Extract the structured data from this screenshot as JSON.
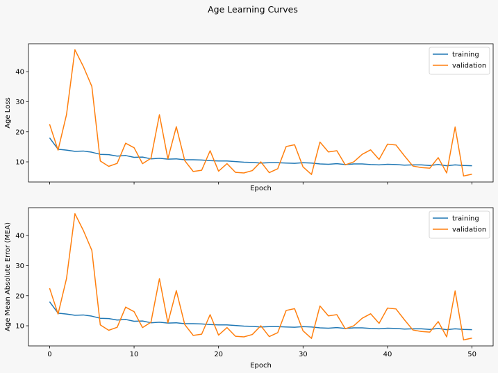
{
  "figure": {
    "title": "Age Learning Curves",
    "background": "#f7f7f7"
  },
  "colors": {
    "training": "#1f77b4",
    "validation": "#ff7f0e"
  },
  "chart_data": [
    {
      "type": "line",
      "title": "",
      "xlabel": "Epoch",
      "ylabel": "Age Loss",
      "xlim": [
        -2.5,
        52.5
      ],
      "ylim": [
        3.3,
        49.3
      ],
      "xticks": [
        0,
        10,
        20,
        30,
        40,
        50
      ],
      "yticks": [
        10,
        20,
        30,
        40
      ],
      "xticklabels_visible": false,
      "grid": false,
      "legend": {
        "location": "top-right",
        "entries": [
          "training",
          "validation"
        ]
      },
      "x": [
        0,
        1,
        2,
        3,
        4,
        5,
        6,
        7,
        8,
        9,
        10,
        11,
        12,
        13,
        14,
        15,
        16,
        17,
        18,
        19,
        20,
        21,
        22,
        23,
        24,
        25,
        26,
        27,
        28,
        29,
        30,
        31,
        32,
        33,
        34,
        35,
        36,
        37,
        38,
        39,
        40,
        41,
        42,
        43,
        44,
        45,
        46,
        47,
        48,
        49,
        50
      ],
      "series": [
        {
          "name": "training",
          "values": [
            18.0,
            14.2,
            13.9,
            13.5,
            13.6,
            13.2,
            12.5,
            12.4,
            11.9,
            12.1,
            11.5,
            11.6,
            11.0,
            11.2,
            10.9,
            11.0,
            10.7,
            10.7,
            10.6,
            10.4,
            10.3,
            10.3,
            10.1,
            9.9,
            9.8,
            9.6,
            9.7,
            9.7,
            9.6,
            9.5,
            9.7,
            9.6,
            9.3,
            9.2,
            9.4,
            9.1,
            9.3,
            9.3,
            9.1,
            9.0,
            9.2,
            9.1,
            8.9,
            9.0,
            9.0,
            8.8,
            9.1,
            8.7,
            9.0,
            8.8,
            8.7
          ]
        },
        {
          "name": "validation",
          "values": [
            22.5,
            13.9,
            25.7,
            47.3,
            41.7,
            35.1,
            10.3,
            8.5,
            9.5,
            16.2,
            14.7,
            9.4,
            11.2,
            25.7,
            11.0,
            21.7,
            10.4,
            6.8,
            7.2,
            13.7,
            6.9,
            9.4,
            6.5,
            6.3,
            7.1,
            10.0,
            6.4,
            7.7,
            15.1,
            15.7,
            8.3,
            5.8,
            16.6,
            13.3,
            13.7,
            9.0,
            10.0,
            12.5,
            14.0,
            10.8,
            15.9,
            15.6,
            12.0,
            8.6,
            8.1,
            7.9,
            11.4,
            6.3,
            21.6,
            5.3,
            5.9
          ]
        }
      ]
    },
    {
      "type": "line",
      "title": "",
      "xlabel": "Epoch",
      "ylabel": "Age Mean Absolute Error (MEA)",
      "xlim": [
        -2.5,
        52.5
      ],
      "ylim": [
        3.3,
        49.3
      ],
      "xticks": [
        0,
        10,
        20,
        30,
        40,
        50
      ],
      "yticks": [
        10,
        20,
        30,
        40
      ],
      "xticklabels_visible": true,
      "grid": false,
      "legend": {
        "location": "top-right",
        "entries": [
          "training",
          "validation"
        ]
      },
      "x": [
        0,
        1,
        2,
        3,
        4,
        5,
        6,
        7,
        8,
        9,
        10,
        11,
        12,
        13,
        14,
        15,
        16,
        17,
        18,
        19,
        20,
        21,
        22,
        23,
        24,
        25,
        26,
        27,
        28,
        29,
        30,
        31,
        32,
        33,
        34,
        35,
        36,
        37,
        38,
        39,
        40,
        41,
        42,
        43,
        44,
        45,
        46,
        47,
        48,
        49,
        50
      ],
      "series": [
        {
          "name": "training",
          "values": [
            18.0,
            14.2,
            13.9,
            13.5,
            13.6,
            13.2,
            12.5,
            12.4,
            11.9,
            12.1,
            11.5,
            11.6,
            11.0,
            11.2,
            10.9,
            11.0,
            10.7,
            10.7,
            10.6,
            10.4,
            10.3,
            10.3,
            10.1,
            9.9,
            9.8,
            9.6,
            9.7,
            9.7,
            9.6,
            9.5,
            9.7,
            9.6,
            9.3,
            9.2,
            9.4,
            9.1,
            9.3,
            9.3,
            9.1,
            9.0,
            9.2,
            9.1,
            8.9,
            9.0,
            9.0,
            8.8,
            9.1,
            8.7,
            9.0,
            8.8,
            8.7
          ]
        },
        {
          "name": "validation",
          "values": [
            22.5,
            13.9,
            25.7,
            47.3,
            41.7,
            35.1,
            10.3,
            8.5,
            9.5,
            16.2,
            14.7,
            9.4,
            11.2,
            25.7,
            11.0,
            21.7,
            10.4,
            6.8,
            7.2,
            13.7,
            6.9,
            9.4,
            6.5,
            6.3,
            7.1,
            10.0,
            6.4,
            7.7,
            15.1,
            15.7,
            8.3,
            5.8,
            16.6,
            13.3,
            13.7,
            9.0,
            10.0,
            12.5,
            14.0,
            10.8,
            15.9,
            15.6,
            12.0,
            8.6,
            8.1,
            7.9,
            11.4,
            6.3,
            21.6,
            5.3,
            5.9
          ]
        }
      ]
    }
  ]
}
